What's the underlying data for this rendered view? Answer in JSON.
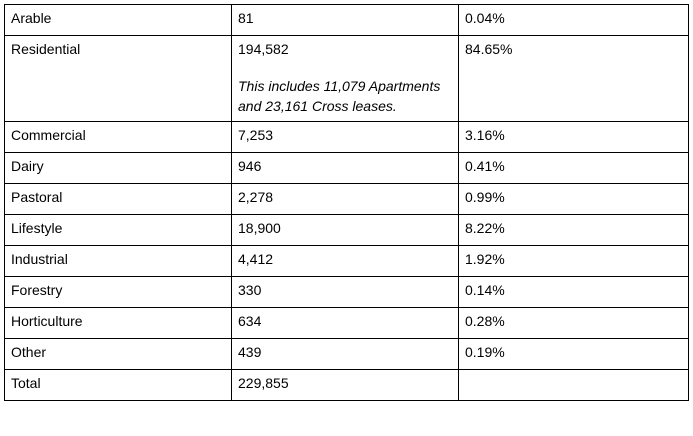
{
  "rows": [
    {
      "category": "Arable",
      "count": "81",
      "percent": "0.04%"
    },
    {
      "category": "Residential",
      "count": "194,582",
      "note": "This includes 11,079 Apartments and 23,161 Cross leases.",
      "percent": "84.65%"
    },
    {
      "category": "Commercial",
      "count": "7,253",
      "percent": "3.16%"
    },
    {
      "category": "Dairy",
      "count": "946",
      "percent": "0.41%"
    },
    {
      "category": "Pastoral",
      "count": "2,278",
      "percent": "0.99%"
    },
    {
      "category": "Lifestyle",
      "count": "18,900",
      "percent": "8.22%"
    },
    {
      "category": "Industrial",
      "count": "4,412",
      "percent": "1.92%"
    },
    {
      "category": "Forestry",
      "count": "330",
      "percent": "0.14%"
    },
    {
      "category": "Horticulture",
      "count": "634",
      "percent": "0.28%"
    },
    {
      "category": "Other",
      "count": "439",
      "percent": "0.19%"
    },
    {
      "category": "Total",
      "count": "229,855",
      "percent": ""
    }
  ]
}
